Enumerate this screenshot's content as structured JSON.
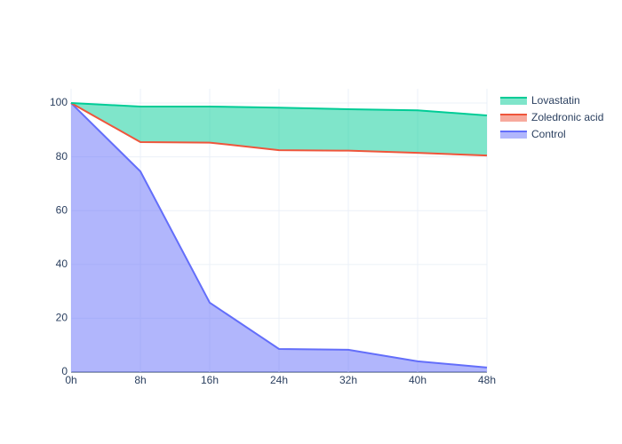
{
  "chart_data": {
    "type": "area",
    "x": [
      "0h",
      "8h",
      "16h",
      "24h",
      "32h",
      "40h",
      "48h"
    ],
    "series": [
      {
        "name": "Control",
        "color": "#636efa",
        "fill": "tozeroy",
        "values": [
          100,
          74.6,
          25.8,
          8.6,
          8.3,
          4,
          1.7
        ]
      },
      {
        "name": "Zoledronic acid",
        "color": "#ef553b",
        "fill": "none",
        "values": [
          100,
          85.5,
          85.3,
          82.5,
          82.3,
          81.5,
          80.5
        ]
      },
      {
        "name": "Lovastatin",
        "color": "#00cc96",
        "fill": "tonexty",
        "values": [
          100,
          98.7,
          98.7,
          98.3,
          97.7,
          97.3,
          95.4
        ]
      }
    ],
    "ylim": [
      0,
      105.3
    ],
    "yticks": [
      0,
      20,
      40,
      60,
      80,
      100
    ],
    "grid": true
  }
}
